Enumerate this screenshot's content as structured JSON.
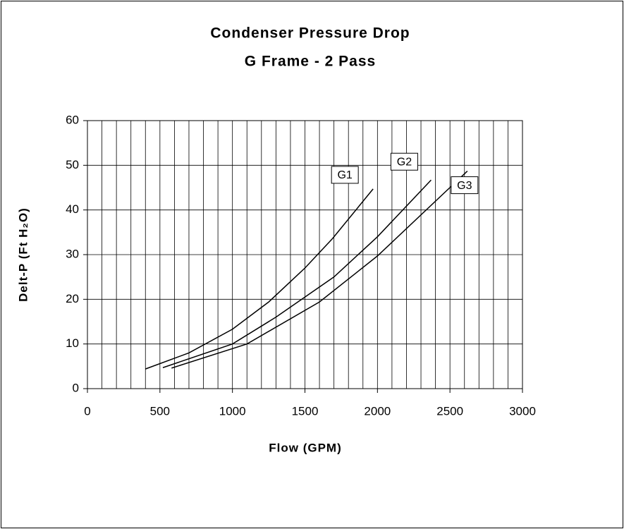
{
  "chart_data": {
    "type": "line",
    "title": "Condenser Pressure Drop",
    "subtitle": "G Frame - 2 Pass",
    "x_label": "Flow (GPM)",
    "y_label": "Delt-P (Ft H₂O)",
    "series": [
      {
        "name": "G1",
        "color": "#000000",
        "x": [
          400,
          700,
          1000,
          1250,
          1500,
          1690,
          1970
        ],
        "y": [
          4.4,
          8,
          13.3,
          19.4,
          27,
          33.6,
          44.7
        ]
      },
      {
        "name": "G2",
        "color": "#000000",
        "x": [
          520,
          1000,
          1300,
          1700,
          2000,
          2370
        ],
        "y": [
          4.7,
          10,
          16,
          25,
          34,
          46.7
        ]
      },
      {
        "name": "G3",
        "color": "#000000",
        "x": [
          580,
          1100,
          1600,
          2000,
          2620
        ],
        "y": [
          4.6,
          10,
          19.4,
          29.7,
          48.7
        ]
      }
    ],
    "xlim": [
      0,
      3000
    ],
    "xticks": [
      0,
      500,
      1000,
      1500,
      2000,
      2500,
      3000
    ],
    "xminor_ticks": [
      100,
      200,
      300,
      400,
      600,
      700,
      800,
      900,
      1100,
      1200,
      1300,
      1400,
      1600,
      1700,
      1800,
      1900,
      2100,
      2200,
      2300,
      2400,
      2600,
      2700,
      2800,
      2900
    ],
    "ylim": [
      0,
      60
    ],
    "yticks": [
      0,
      10,
      20,
      30,
      40,
      50,
      60
    ],
    "grid": true
  }
}
